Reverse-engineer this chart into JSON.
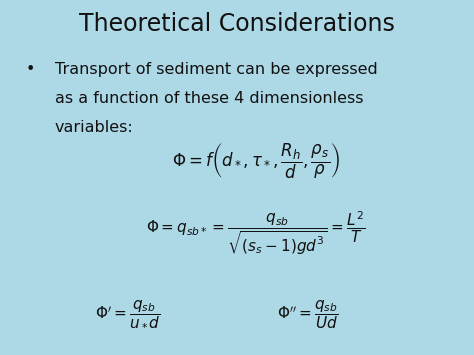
{
  "title": "Theoretical Considerations",
  "background_color": "#add8e6",
  "title_color": "#111111",
  "text_color": "#111111",
  "bullet_text_line1": "Transport of sediment can be expressed",
  "bullet_text_line2": "as a function of these 4 dimensionless",
  "bullet_text_line3": "variables:",
  "eq1": "$\\Phi = f\\left(d_*, \\tau_*, \\dfrac{R_h}{d}, \\dfrac{\\rho_s}{\\rho}\\right)$",
  "eq2": "$\\Phi = q_{sb*} = \\dfrac{q_{sb}}{\\sqrt{(s_s - 1)gd^3}} = \\dfrac{L^2}{T}$",
  "eq3a": "$\\Phi' = \\dfrac{q_{sb}}{u_* d}$",
  "eq3b": "$\\Phi'' = \\dfrac{q_{sb}}{Ud}$",
  "title_fontsize": 17,
  "bullet_fontsize": 11.5,
  "eq_fontsize": 11
}
